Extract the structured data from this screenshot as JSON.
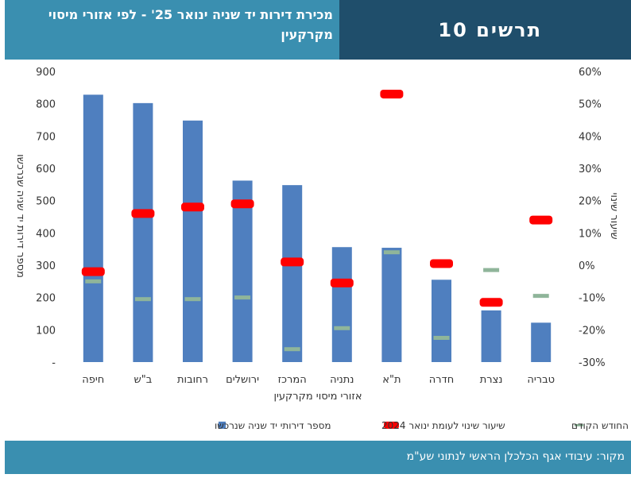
{
  "header": {
    "subtitle": "מכירת דירות יד שניה ינואר 25' - לפי אזורי מיסוי מקרקעין",
    "title": "תרשים 10"
  },
  "footer": {
    "source": "מקור: עיבודי אגף הכלכלן הראשי לנתוני שע\"מ"
  },
  "chart_data": {
    "type": "bar",
    "categories": [
      "חיפה",
      "ב\"ש",
      "רחובות",
      "ירושלים",
      "המרכז",
      "נתניה",
      "ת\"א",
      "חדרה",
      "נצרת",
      "טבריה"
    ],
    "series": [
      {
        "name": "מספר דירותי יד שניה שנרכשו",
        "kind": "bar",
        "axis": "left",
        "color": "#4f7fbf",
        "values": [
          828,
          802,
          748,
          562,
          548,
          356,
          354,
          255,
          160,
          122
        ]
      },
      {
        "name": "שיעור שינוי לעומת ינואר 2024",
        "kind": "marker",
        "axis": "right",
        "color": "#ff0000",
        "values": [
          -2,
          16,
          18,
          19,
          1,
          -5.5,
          53,
          0.5,
          -11.5,
          14
        ]
      },
      {
        "name": "שיעור שינוי לעומת החודש הקודם",
        "kind": "marker",
        "axis": "right",
        "color": "#8fb59a",
        "values": [
          -5,
          -10.5,
          -10.5,
          -10,
          -26,
          -19.5,
          4,
          -22.5,
          -1.5,
          -9.5
        ]
      }
    ],
    "xlabel": "אזורי מיסוי מקרקעין",
    "ylabel": "מספר דירות יד שניה שנרכשו",
    "y2label": "שיעור שינוי",
    "ylim": [
      0,
      900
    ],
    "y2lim": [
      -30,
      60
    ],
    "y_ticks": [
      "-",
      "100",
      "200",
      "300",
      "400",
      "500",
      "600",
      "700",
      "800",
      "900"
    ],
    "y2_ticks": [
      "-30%",
      "-20%",
      "-10%",
      "0%",
      "10%",
      "20%",
      "30%",
      "40%",
      "50%",
      "60%"
    ],
    "legend": [
      {
        "label": "שיעור שינוי לעומת החודש הקודם",
        "color": "#8fb59a"
      },
      {
        "label": "שיעור שינוי לעומת ינואר 2024",
        "color": "#ff0000"
      },
      {
        "label": "מספר דירותי יד שניה שנרכשו",
        "color": "#4f7fbf"
      }
    ],
    "legend_position": "bottom",
    "grid": false
  }
}
